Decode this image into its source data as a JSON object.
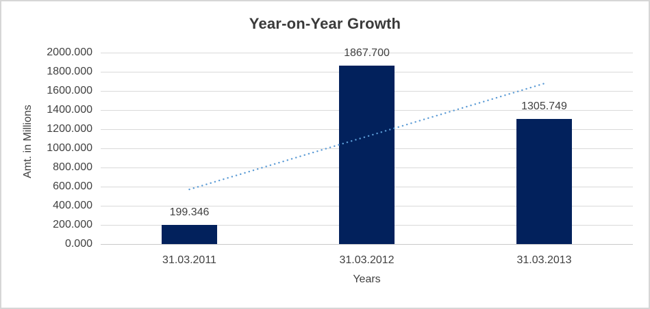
{
  "chart_data": {
    "type": "bar",
    "title": "Year-on-Year Growth",
    "xlabel": "Years",
    "ylabel": "Amt. in Millions",
    "categories": [
      "31.03.2011",
      "31.03.2012",
      "31.03.2013"
    ],
    "values": [
      199.346,
      1867.7,
      1305.749
    ],
    "data_labels": [
      "199.346",
      "1867.700",
      "1305.749"
    ],
    "ylim": [
      0,
      2000
    ],
    "ytick_step": 200,
    "ytick_labels": [
      "0.000",
      "200.000",
      "400.000",
      "600.000",
      "800.000",
      "1000.000",
      "1200.000",
      "1400.000",
      "1600.000",
      "1800.000",
      "2000.000"
    ],
    "grid": true,
    "legend": "none",
    "bar_color": "#02215C",
    "trendline": {
      "type": "linear",
      "style": "dotted",
      "color": "#5B9BD5",
      "start_value": 571,
      "end_value": 1677
    }
  }
}
